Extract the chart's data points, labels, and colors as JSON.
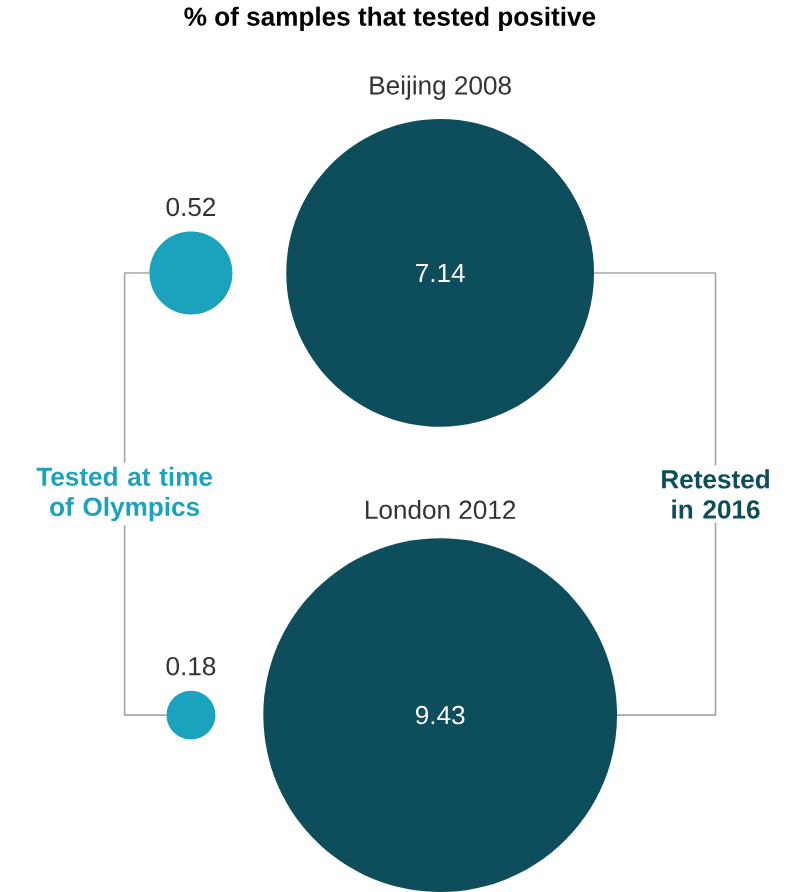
{
  "chart_data": {
    "type": "other",
    "title": "% of samples that tested positive",
    "categories": [
      "Tested at time of Olympics",
      "Retested in 2016"
    ],
    "series": [
      {
        "name": "Beijing 2008",
        "values": [
          0.52,
          7.14
        ],
        "colors": [
          "#1ba3bd",
          "#0e4d5b"
        ]
      },
      {
        "name": "London 2012",
        "values": [
          0.18,
          9.43
        ],
        "colors": [
          "#1ba3bd",
          "#0e4d5b"
        ]
      }
    ],
    "data_labels": true
  }
}
